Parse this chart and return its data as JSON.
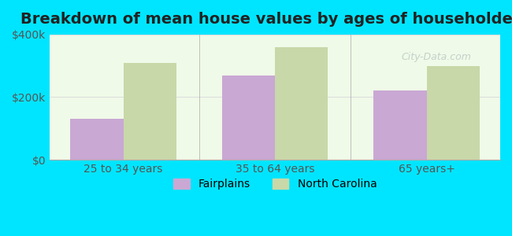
{
  "title": "Breakdown of mean house values by ages of householders",
  "categories": [
    "25 to 34 years",
    "35 to 64 years",
    "65 years+"
  ],
  "fairplains_values": [
    130000,
    270000,
    220000
  ],
  "nc_values": [
    310000,
    360000,
    300000
  ],
  "fairplains_color": "#c9a8d4",
  "nc_color": "#c8d8a8",
  "background_color": "#00e5ff",
  "plot_bg_color": "#f0fae8",
  "ylim": [
    0,
    400000
  ],
  "yticks": [
    0,
    200000,
    400000
  ],
  "ytick_labels": [
    "$0",
    "$200k",
    "$400k"
  ],
  "legend_labels": [
    "Fairplains",
    "North Carolina"
  ],
  "bar_width": 0.35,
  "title_fontsize": 14,
  "tick_fontsize": 10,
  "legend_fontsize": 10,
  "watermark": "City-Data.com"
}
